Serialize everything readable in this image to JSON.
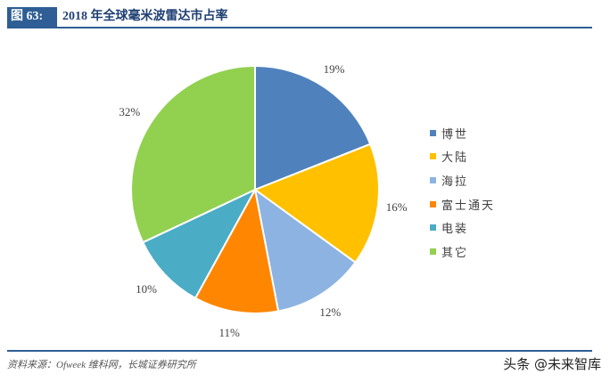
{
  "header": {
    "fig_tag": "图 63:",
    "title": "2018 年全球毫米波雷达市占率"
  },
  "chart_data": {
    "type": "pie",
    "title": "2018 年全球毫米波雷达市占率",
    "categories": [
      "博世",
      "大陆",
      "海拉",
      "富士通天",
      "电装",
      "其它"
    ],
    "values": [
      19,
      16,
      12,
      11,
      10,
      32
    ],
    "labels": [
      "19%",
      "16%",
      "12%",
      "11%",
      "10%",
      "32%"
    ],
    "colors": [
      "#4f81bd",
      "#ffc000",
      "#8db3e2",
      "#ff8600",
      "#4bacc6",
      "#92d050"
    ],
    "start_angle": "12 o'clock",
    "direction": "clockwise",
    "legend_position": "right"
  },
  "legend": {
    "items": [
      {
        "label": "博世",
        "color": "#4f81bd"
      },
      {
        "label": "大陆",
        "color": "#ffc000"
      },
      {
        "label": "海拉",
        "color": "#8db3e2"
      },
      {
        "label": "富士通天",
        "color": "#ff8600"
      },
      {
        "label": "电装",
        "color": "#4bacc6"
      },
      {
        "label": "其它",
        "color": "#92d050"
      }
    ]
  },
  "footer": {
    "source": "资料来源：Ofweek 维科网，长城证券研究所",
    "watermark": "头条 @未来智库"
  }
}
